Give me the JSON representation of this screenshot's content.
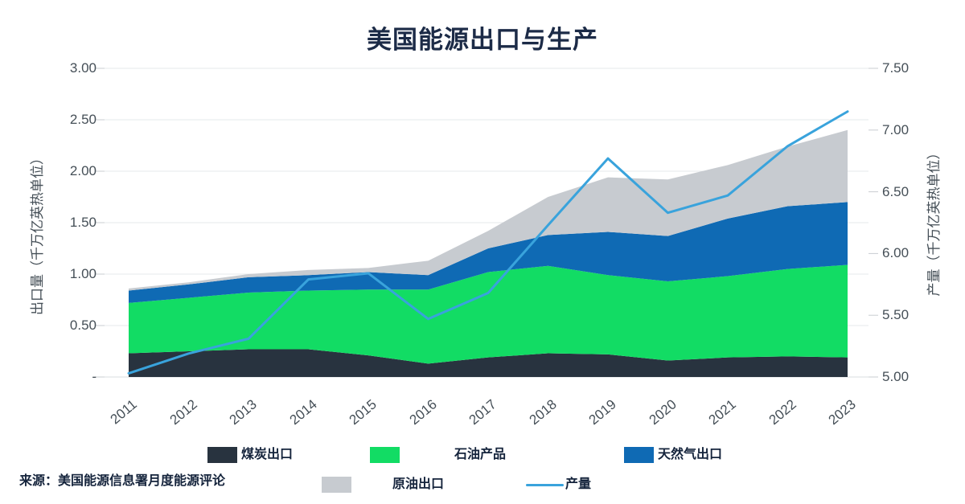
{
  "title": "美国能源出口与生产",
  "source": "来源：美国能源信息署月度能源评论",
  "colors": {
    "title_text": "#1c2b47",
    "legend_text": "#15243c",
    "axis_text": "#454f57",
    "gridline": "#e6e8eb",
    "tick_mark": "#c9cdd1",
    "coal": "#28333f",
    "petroleum": "#12dc64",
    "gas": "#0f6ab4",
    "crude": "#c7cbd0",
    "production_line": "#39a3dc"
  },
  "left_axis": {
    "title": "出口量（千万亿英热单位）",
    "ticks": [
      "3.00",
      "2.50",
      "2.00",
      "1.50",
      "1.00",
      "0.50",
      "-"
    ]
  },
  "right_axis": {
    "title": "产量（千万亿英热单位）",
    "ticks": [
      "7.50",
      "7.00",
      "6.50",
      "6.00",
      "5.50",
      "5.00"
    ]
  },
  "legend": [
    {
      "label": "煤炭出口",
      "type": "swatch",
      "color_key": "coal"
    },
    {
      "label": "石油产品",
      "type": "swatch",
      "color_key": "petroleum"
    },
    {
      "label": "天然气出口",
      "type": "swatch",
      "color_key": "gas"
    },
    {
      "label": "原油出口",
      "type": "swatch",
      "color_key": "crude"
    },
    {
      "label": "产量",
      "type": "line",
      "color_key": "production_line"
    }
  ],
  "chart_data": {
    "type": "area",
    "title": "美国能源出口与生产",
    "x": [
      2011,
      2012,
      2013,
      2014,
      2015,
      2016,
      2017,
      2018,
      2019,
      2020,
      2021,
      2022,
      2023
    ],
    "left_axis_label": "出口量（千万亿英热单位）",
    "right_axis_label": "产量（千万亿英热单位）",
    "left_axis_range": [
      0,
      3.0
    ],
    "right_axis_range": [
      5.0,
      7.5
    ],
    "left_tick_values": [
      3.0,
      2.5,
      2.0,
      1.5,
      1.0,
      0.5,
      0
    ],
    "right_tick_values": [
      7.5,
      7.0,
      6.5,
      6.0,
      5.5,
      5.0
    ],
    "grid": true,
    "legend_position": "bottom",
    "series": [
      {
        "name": "煤炭出口",
        "type": "area",
        "axis": "left",
        "stacked": true,
        "color_key": "coal",
        "values": [
          0.23,
          0.25,
          0.27,
          0.27,
          0.21,
          0.13,
          0.19,
          0.23,
          0.22,
          0.16,
          0.19,
          0.2,
          0.19
        ]
      },
      {
        "name": "石油产品",
        "type": "area",
        "axis": "left",
        "stacked": true,
        "color_key": "petroleum",
        "values": [
          0.49,
          0.52,
          0.55,
          0.57,
          0.64,
          0.72,
          0.83,
          0.85,
          0.77,
          0.77,
          0.79,
          0.85,
          0.9
        ]
      },
      {
        "name": "天然气出口",
        "type": "area",
        "axis": "left",
        "stacked": true,
        "color_key": "gas",
        "values": [
          0.12,
          0.13,
          0.15,
          0.15,
          0.17,
          0.14,
          0.23,
          0.3,
          0.42,
          0.44,
          0.56,
          0.61,
          0.61
        ]
      },
      {
        "name": "原油出口",
        "type": "area",
        "axis": "left",
        "stacked": true,
        "color_key": "crude",
        "values": [
          0.02,
          0.02,
          0.03,
          0.05,
          0.04,
          0.14,
          0.17,
          0.37,
          0.53,
          0.55,
          0.52,
          0.58,
          0.7
        ]
      },
      {
        "name": "产量",
        "type": "line",
        "axis": "right",
        "stacked": false,
        "color_key": "production_line",
        "values": [
          5.03,
          5.19,
          5.31,
          5.79,
          5.84,
          5.47,
          5.68,
          6.23,
          6.77,
          6.33,
          6.47,
          6.87,
          7.15
        ]
      }
    ]
  }
}
